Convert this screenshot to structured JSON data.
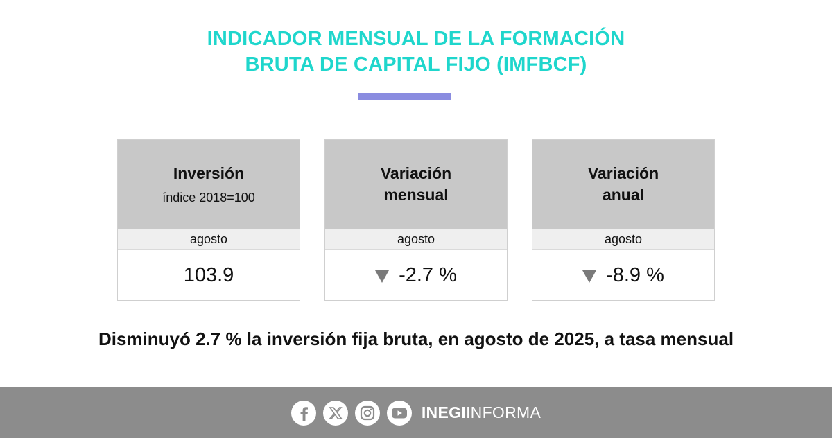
{
  "header": {
    "title_line1": "INDICADOR MENSUAL DE LA FORMACIÓN",
    "title_line2": "BRUTA DE CAPITAL FIJO (IMFBCF)"
  },
  "colors": {
    "title": "#1fd6cc",
    "accent_bar": "#8a8ce0",
    "card_header": "#c8c8c8",
    "footer": "#8c8c8c"
  },
  "cards": [
    {
      "title": "Inversión",
      "subtitle": "índice 2018=100",
      "period": "agosto",
      "value": "103.9",
      "trend": "none"
    },
    {
      "title_line1": "Variación",
      "title_line2": "mensual",
      "period": "agosto",
      "value": "-2.7 %",
      "trend": "down",
      "icon": "down-triangle-icon"
    },
    {
      "title_line1": "Variación",
      "title_line2": "anual",
      "period": "agosto",
      "value": "-8.9 %",
      "trend": "down",
      "icon": "down-triangle-icon"
    }
  ],
  "headline": "Disminuyó 2.7 % la inversión fija bruta, en agosto de 2025, a tasa mensual",
  "footer": {
    "icons": [
      "facebook-icon",
      "x-icon",
      "instagram-icon",
      "youtube-icon"
    ],
    "brand_bold": "INEGI",
    "brand_light": "INFORMA"
  }
}
